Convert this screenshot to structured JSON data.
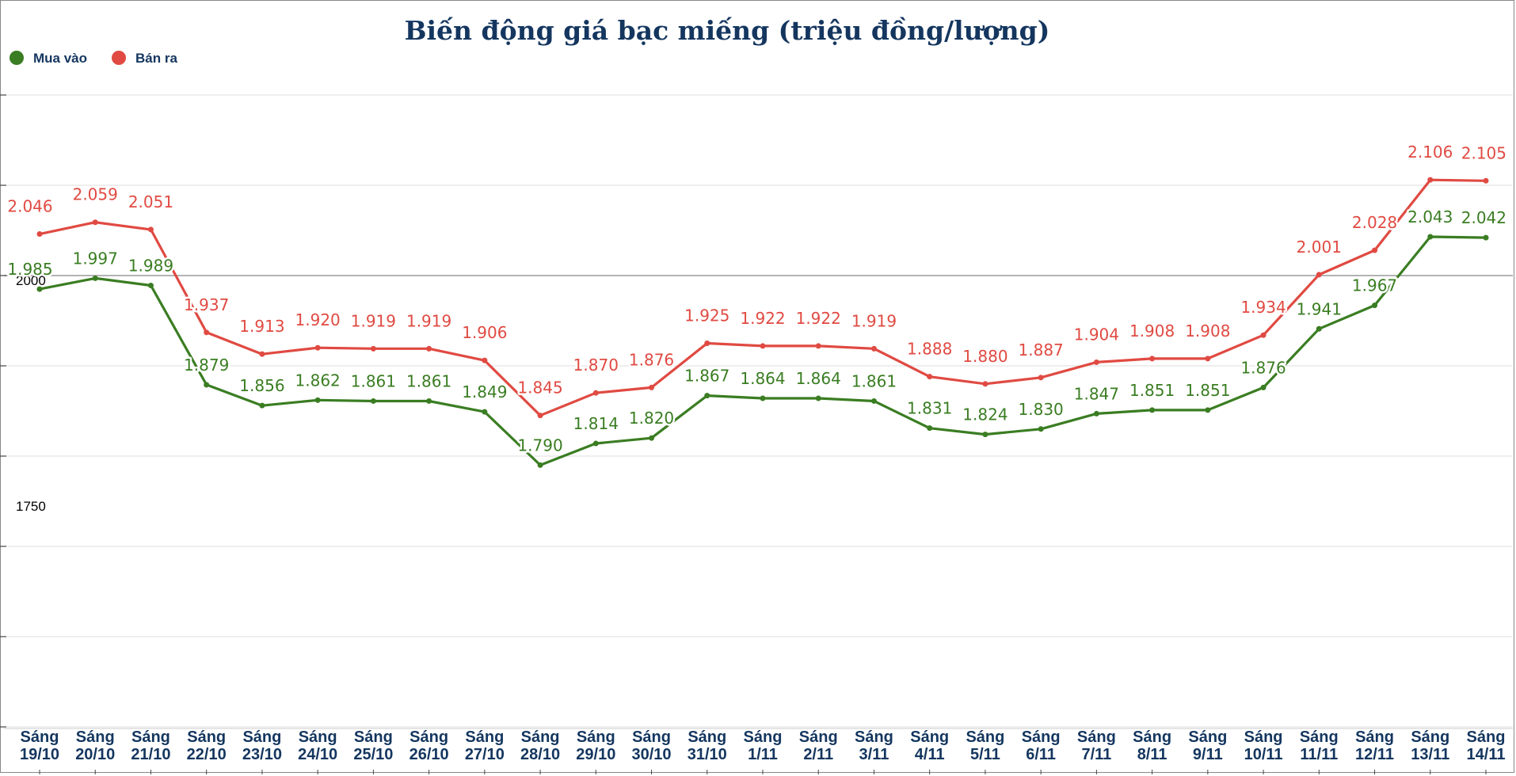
{
  "chart_data": {
    "type": "line",
    "title": "Biến động giá bạc miếng (triệu đồng/lượng)",
    "xlabel": "",
    "ylabel": "",
    "ylim": [
      1500,
      2200
    ],
    "ytick_values": [
      2000,
      1750
    ],
    "ytick_labels": [
      "2000",
      "1750"
    ],
    "grid": true,
    "legend_position": "top-left",
    "categories": [
      "Sáng\n19/10",
      "Sáng\n20/10",
      "Sáng\n21/10",
      "Sáng\n22/10",
      "Sáng\n23/10",
      "Sáng\n24/10",
      "Sáng\n25/10",
      "Sáng\n26/10",
      "Sáng\n27/10",
      "Sáng\n28/10",
      "Sáng\n29/10",
      "Sáng\n30/10",
      "Sáng\n31/10",
      "Sáng\n1/11",
      "Sáng\n2/11",
      "Sáng\n3/11",
      "Sáng\n4/11",
      "Sáng\n5/11",
      "Sáng\n6/11",
      "Sáng\n7/11",
      "Sáng\n8/11",
      "Sáng\n9/11",
      "Sáng\n10/11",
      "Sáng\n11/11",
      "Sáng\n12/11",
      "Sáng\n13/11",
      "Sáng\n14/11"
    ],
    "series": [
      {
        "name": "Mua vào",
        "color": "#3a7d22",
        "values": [
          1985,
          1997,
          1989,
          1879,
          1856,
          1862,
          1861,
          1861,
          1849,
          1790,
          1814,
          1820,
          1867,
          1864,
          1864,
          1861,
          1831,
          1824,
          1830,
          1847,
          1851,
          1851,
          1876,
          1941,
          1967,
          2043,
          2042
        ],
        "labels": [
          "1.985",
          "1.997",
          "1.989",
          "1.879",
          "1.856",
          "1.862",
          "1.861",
          "1.861",
          "1.849",
          "1.790",
          "1.814",
          "1.820",
          "1.867",
          "1.864",
          "1.864",
          "1.861",
          "1.831",
          "1.824",
          "1.830",
          "1.847",
          "1.851",
          "1.851",
          "1.876",
          "1.941",
          "1.967",
          "2.043",
          "2.042"
        ]
      },
      {
        "name": "Bán ra",
        "color": "#e04a42",
        "values": [
          2046,
          2059,
          2051,
          1937,
          1913,
          1920,
          1919,
          1919,
          1906,
          1845,
          1870,
          1876,
          1925,
          1922,
          1922,
          1919,
          1888,
          1880,
          1887,
          1904,
          1908,
          1908,
          1934,
          2001,
          2028,
          2106,
          2105
        ],
        "labels": [
          "2.046",
          "2.059",
          "2.051",
          "1.937",
          "1.913",
          "1.920",
          "1.919",
          "1.919",
          "1.906",
          "1.845",
          "1.870",
          "1.876",
          "1.925",
          "1.922",
          "1.922",
          "1.919",
          "1.888",
          "1.880",
          "1.887",
          "1.904",
          "1.908",
          "1.908",
          "1.934",
          "2.001",
          "2.028",
          "2.106",
          "2.105"
        ]
      }
    ]
  }
}
